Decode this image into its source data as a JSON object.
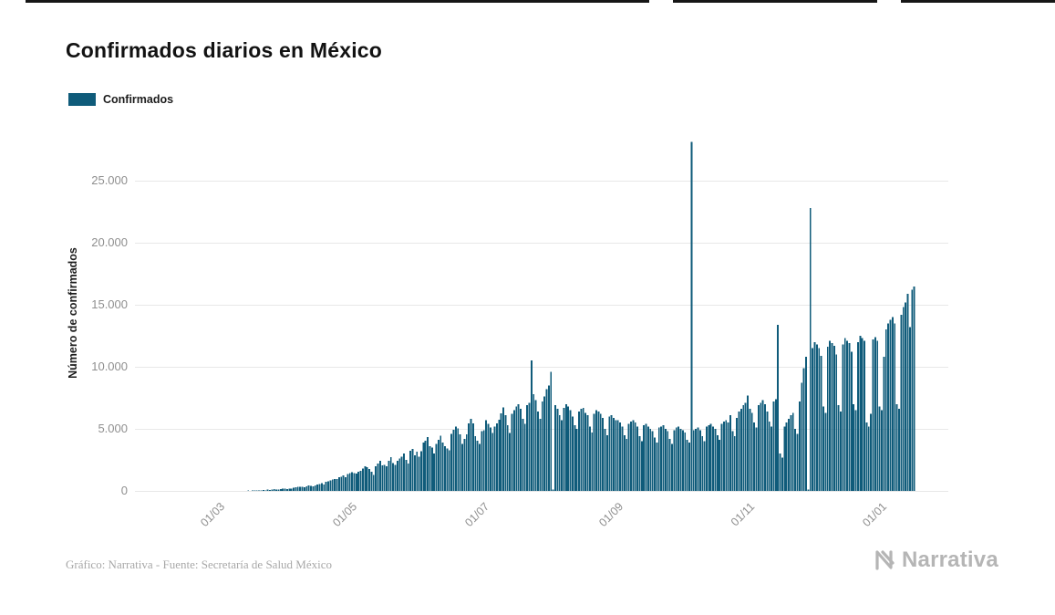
{
  "page": {
    "title": "Confirmados diarios en México",
    "source_note": "Gráfico: Narrativa - Fuente: Secretaría de Salud México",
    "brand": "Narrativa"
  },
  "legend": {
    "label": "Confirmados"
  },
  "chart_data": {
    "type": "bar",
    "title": "Confirmados diarios en México",
    "series_name": "Confirmados",
    "xlabel": "",
    "ylabel": "Número de confirmados",
    "bar_color": "#0f5b7a",
    "grid_color": "#e8e8e8",
    "grid": true,
    "legend_position": "top-left",
    "ylim": [
      0,
      28115
    ],
    "x_unit": "day",
    "start_date": "2020-01-22",
    "end_date": "2021-01-16",
    "y_ticks": [
      {
        "label": "0",
        "value": 0
      },
      {
        "label": "5.000",
        "value": 5000
      },
      {
        "label": "10.000",
        "value": 10000
      },
      {
        "label": "15.000",
        "value": 15000
      },
      {
        "label": "20.000",
        "value": 20000
      },
      {
        "label": "25.000",
        "value": 25000
      }
    ],
    "x_ticks": [
      {
        "label": "01/03",
        "day_index": 39
      },
      {
        "label": "01/05",
        "day_index": 100
      },
      {
        "label": "01/07",
        "day_index": 161
      },
      {
        "label": "01/09",
        "day_index": 223
      },
      {
        "label": "01/11",
        "day_index": 284
      },
      {
        "label": "01/01",
        "day_index": 345
      }
    ],
    "values": [
      0,
      0,
      0,
      0,
      0,
      0,
      0,
      0,
      0,
      0,
      0,
      0,
      0,
      0,
      0,
      0,
      0,
      0,
      0,
      0,
      0,
      0,
      0,
      0,
      0,
      0,
      0,
      0,
      0,
      0,
      0,
      0,
      0,
      0,
      0,
      0,
      0,
      1,
      2,
      1,
      2,
      1,
      4,
      1,
      6,
      4,
      8,
      5,
      4,
      7,
      12,
      17,
      26,
      15,
      24,
      25,
      50,
      45,
      47,
      65,
      48,
      110,
      85,
      105,
      130,
      115,
      100,
      145,
      170,
      190,
      163,
      202,
      178,
      250,
      296,
      315,
      346,
      330,
      296,
      375,
      442,
      400,
      353,
      448,
      510,
      560,
      622,
      500,
      729,
      764,
      850,
      920,
      970,
      940,
      1089,
      1150,
      1239,
      1120,
      1350,
      1425,
      1515,
      1425,
      1383,
      1562,
      1609,
      1800,
      1982,
      1906,
      1750,
      1562,
      1305,
      1997,
      2200,
      2409,
      2075,
      2112,
      1980,
      2414,
      2713,
      2248,
      2100,
      2437,
      2628,
      2764,
      3000,
      2485,
      2200,
      3227,
      3377,
      2885,
      3152,
      2771,
      3200,
      3912,
      4050,
      4346,
      3593,
      3484,
      2999,
      3800,
      4100,
      4442,
      3900,
      3600,
      3427,
      3282,
      4599,
      4930,
      5200,
      5030,
      4577,
      3805,
      4200,
      4577,
      5437,
      5800,
      5441,
      4410,
      4050,
      3805,
      4800,
      4902,
      5681,
      5400,
      5100,
      4683,
      5200,
      5441,
      5752,
      6258,
      6741,
      6100,
      5300,
      4685,
      6200,
      6500,
      6800,
      7000,
      6600,
      5800,
      5400,
      6900,
      7100,
      10500,
      7800,
      7300,
      6400,
      5800,
      7200,
      7600,
      8200,
      8500,
      9600,
      100,
      6900,
      6600,
      6100,
      5700,
      6700,
      7000,
      6800,
      6500,
      6000,
      5300,
      5000,
      6400,
      6600,
      6700,
      6300,
      6100,
      5200,
      4700,
      6200,
      6500,
      6400,
      6200,
      5900,
      5000,
      4500,
      6000,
      6100,
      5900,
      5700,
      5700,
      5500,
      5200,
      4500,
      4200,
      5400,
      5600,
      5700,
      5500,
      5200,
      4400,
      4000,
      5300,
      5400,
      5200,
      5000,
      4800,
      4300,
      3900,
      5100,
      5200,
      5300,
      5000,
      4800,
      4200,
      3800,
      4900,
      5100,
      5200,
      5000,
      4900,
      4700,
      4100,
      3900,
      28115,
      4900,
      5000,
      5100,
      4900,
      4400,
      4000,
      5200,
      5300,
      5400,
      5200,
      5000,
      4500,
      4100,
      5400,
      5600,
      5700,
      5500,
      6100,
      4800,
      4400,
      5900,
      6400,
      6600,
      6900,
      7100,
      7700,
      6600,
      6300,
      5500,
      5100,
      6900,
      7100,
      7300,
      7000,
      6400,
      5600,
      5200,
      7200,
      7400,
      13400,
      3000,
      2700,
      5200,
      5500,
      5800,
      6100,
      6300,
      5000,
      4600,
      7200,
      8700,
      9900,
      10800,
      100,
      22800,
      11500,
      12000,
      11800,
      11500,
      10900,
      6800,
      6300,
      11600,
      12100,
      11900,
      11700,
      11000,
      6900,
      6400,
      11800,
      12300,
      12100,
      11900,
      11200,
      7000,
      6500,
      12000,
      12500,
      12300,
      12100,
      5500,
      5200,
      6200,
      12200,
      12400,
      12100,
      6800,
      6500,
      10800,
      13000,
      13500,
      13800,
      14000,
      13500,
      7000,
      6600,
      14200,
      14800,
      15200,
      15900,
      13200,
      16200,
      16468
    ]
  }
}
